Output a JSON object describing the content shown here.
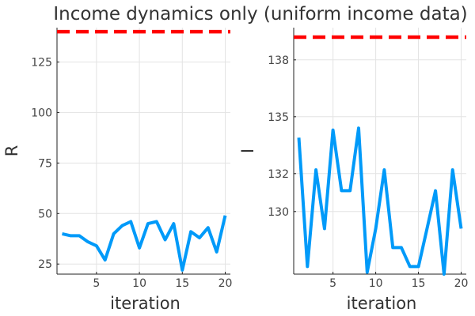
{
  "title": "Income dynamics only (uniform income data)",
  "colors": {
    "series": "#009af9",
    "reference": "#ff0000"
  },
  "chart_data": [
    {
      "type": "line",
      "xlabel": "iteration",
      "ylabel": "R",
      "xlim": [
        0.4,
        20.6
      ],
      "ylim": [
        20,
        142
      ],
      "xticks": [
        5,
        10,
        15,
        20
      ],
      "yticks": [
        25,
        50,
        75,
        100,
        125
      ],
      "ytick_labels": [
        "25",
        "50",
        "75",
        "100",
        "125"
      ],
      "grid": true,
      "x": [
        1,
        2,
        3,
        4,
        5,
        6,
        7,
        8,
        9,
        10,
        11,
        12,
        13,
        14,
        15,
        16,
        17,
        18,
        19,
        20
      ],
      "values": [
        40,
        39,
        39,
        36,
        34,
        27,
        40,
        44,
        46,
        33,
        45,
        46,
        37,
        45,
        22,
        41,
        38,
        43,
        31,
        49
      ],
      "reference_line": {
        "y": 140,
        "style": "dashed",
        "color": "#ff0000"
      }
    },
    {
      "type": "line",
      "xlabel": "iteration",
      "ylabel": "I",
      "xlim": [
        0.4,
        20.6
      ],
      "ylim": [
        126.7,
        139.7
      ],
      "xticks": [
        5,
        10,
        15,
        20
      ],
      "yticks": [
        130,
        132,
        135,
        138
      ],
      "ytick_labels": [
        "130",
        "132",
        "135",
        "138"
      ],
      "grid": true,
      "x": [
        1,
        2,
        3,
        4,
        5,
        6,
        7,
        8,
        9,
        10,
        11,
        12,
        13,
        14,
        15,
        16,
        17,
        18,
        19,
        20
      ],
      "values": [
        133.9,
        127.1,
        132.2,
        129.1,
        134.3,
        131.1,
        131.1,
        134.4,
        126.8,
        129.1,
        132.2,
        128.1,
        128.1,
        127.1,
        127.1,
        129.1,
        131.1,
        126.7,
        132.2,
        129.1
      ],
      "reference_line": {
        "y": 139.2,
        "style": "dashed",
        "color": "#ff0000"
      }
    }
  ]
}
